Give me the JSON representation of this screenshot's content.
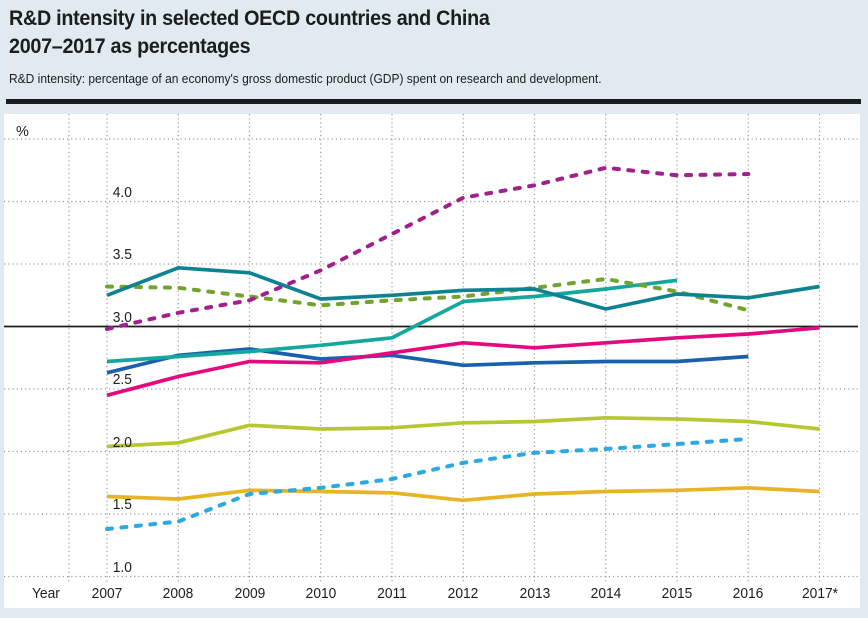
{
  "header": {
    "title_line1": "R&D intensity in selected OECD countries and China",
    "title_line2": "2007–2017 as percentages",
    "subtitle": "R&D intensity: percentage of an economy's gross domestic product (GDP) spent on research and development."
  },
  "chart_data": {
    "type": "line",
    "title": "R&D intensity in selected OECD countries and China 2007–2017 as percentages",
    "x_title": "Year",
    "y_unit": "%",
    "categories": [
      "2007",
      "2008",
      "2009",
      "2010",
      "2011",
      "2012",
      "2013",
      "2014",
      "2015",
      "2016",
      "2017*"
    ],
    "y_tick_labels": [
      "4.0",
      "3.5",
      "3.0",
      "2.5",
      "2.0",
      "1.5",
      "1.0"
    ],
    "y_tick_values": [
      4.0,
      3.5,
      3.0,
      2.5,
      2.0,
      1.5,
      1.0
    ],
    "dotted_horizontal_gridlines": [
      4.5,
      4.0,
      3.5,
      2.5,
      2.0,
      1.5,
      1.0
    ],
    "reference_line": {
      "value": 3.0,
      "style": "solid"
    },
    "ylim": [
      0.75,
      4.7
    ],
    "grid": "dotted",
    "legend_position": "none",
    "series": [
      {
        "name": "light-green-line",
        "color": "#b4c832",
        "dashed": false,
        "values": [
          2.04,
          2.07,
          2.21,
          2.18,
          2.19,
          2.23,
          2.24,
          2.27,
          2.26,
          2.24,
          2.18
        ]
      },
      {
        "name": "yellow-line",
        "color": "#e6b424",
        "dashed": false,
        "values": [
          1.64,
          1.62,
          1.69,
          1.68,
          1.67,
          1.61,
          1.66,
          1.68,
          1.69,
          1.71,
          1.68
        ]
      },
      {
        "name": "light-blue-dashed-line",
        "color": "#2ca9e1",
        "dashed": true,
        "values": [
          1.38,
          1.44,
          1.66,
          1.71,
          1.78,
          1.91,
          1.99,
          2.02,
          2.06,
          2.1,
          null
        ]
      },
      {
        "name": "blue-line",
        "color": "#1a61ad",
        "dashed": false,
        "values": [
          2.63,
          2.77,
          2.82,
          2.74,
          2.77,
          2.69,
          2.71,
          2.72,
          2.72,
          2.76,
          null
        ]
      },
      {
        "name": "magenta-line",
        "color": "#e5097f",
        "dashed": false,
        "values": [
          2.45,
          2.6,
          2.72,
          2.71,
          2.79,
          2.87,
          2.83,
          2.87,
          2.91,
          2.94,
          2.99
        ]
      },
      {
        "name": "turquoise-line",
        "color": "#14a79e",
        "dashed": false,
        "values": [
          2.72,
          2.76,
          2.8,
          2.85,
          2.91,
          3.2,
          3.24,
          3.3,
          3.37,
          null,
          null
        ]
      },
      {
        "name": "olive-dashed-line",
        "color": "#74a32d",
        "dashed": true,
        "values": [
          3.32,
          3.31,
          3.24,
          3.17,
          3.21,
          3.24,
          3.31,
          3.38,
          3.28,
          3.13,
          null
        ]
      },
      {
        "name": "dark-teal-line",
        "color": "#0e8290",
        "dashed": false,
        "values": [
          3.25,
          3.47,
          3.43,
          3.22,
          3.25,
          3.29,
          3.3,
          3.14,
          3.26,
          3.23,
          3.32
        ]
      },
      {
        "name": "purple-dashed-line",
        "color": "#a1218c",
        "dashed": true,
        "values": [
          2.98,
          3.11,
          3.21,
          3.45,
          3.74,
          4.03,
          4.13,
          4.27,
          4.21,
          4.22,
          null
        ]
      }
    ]
  },
  "colors": {
    "canvas_background": "#e1e9f1",
    "plot_background": "#ffffff",
    "gridline": "#999999",
    "reference_line": "#1d1d1b",
    "text": "#1d1d1b",
    "divider_rule": "#1d1d1b"
  }
}
